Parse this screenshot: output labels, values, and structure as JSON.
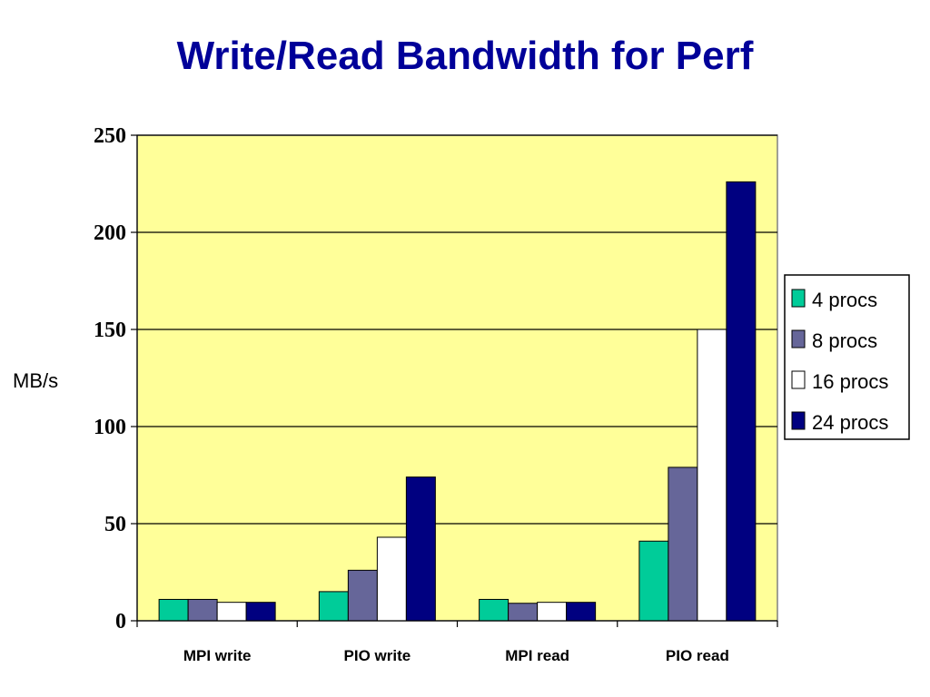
{
  "colors": {
    "plot_background": "#FFFF99",
    "gridline": "#000000",
    "title": "#000099"
  },
  "chart_data": {
    "type": "bar",
    "title": "Write/Read Bandwidth for Perf",
    "xlabel": "",
    "ylabel": "MB/s",
    "ylim": [
      0,
      250
    ],
    "yticks": [
      "0",
      "50",
      "100",
      "150",
      "200",
      "250"
    ],
    "grid": true,
    "legend_position": "right",
    "categories": [
      "MPI write",
      "PIO write",
      "MPI read",
      "PIO read"
    ],
    "series": [
      {
        "name": "4 procs",
        "color": "#00CC99",
        "values": [
          11,
          15,
          11,
          41
        ]
      },
      {
        "name": "8 procs",
        "color": "#666699",
        "values": [
          11,
          26,
          9,
          79
        ]
      },
      {
        "name": "16 procs",
        "color": "#FFFFFF",
        "values": [
          9.5,
          43,
          9.5,
          150
        ]
      },
      {
        "name": "24 procs",
        "color": "#000080",
        "values": [
          9.5,
          74,
          9.5,
          226
        ]
      }
    ]
  }
}
